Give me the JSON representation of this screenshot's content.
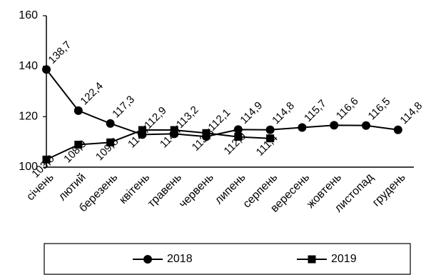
{
  "chart_data": {
    "type": "line",
    "categories": [
      "січень",
      "лютий",
      "березень",
      "квітень",
      "травень",
      "червень",
      "липень",
      "серпень",
      "вересень",
      "жовтень",
      "листопад",
      "грудень"
    ],
    "series": [
      {
        "name": "2018",
        "color": "#000000",
        "marker": "circle",
        "values": [
          138.7,
          122.4,
          117.3,
          112.9,
          113.2,
          112.1,
          114.9,
          114.8,
          115.7,
          116.6,
          116.5,
          114.8
        ],
        "value_labels": [
          "138,7",
          "122,4",
          "117,3",
          "112,9",
          "113,2",
          "112,1",
          "114,9",
          "114,8",
          "115,7",
          "116,6",
          "116,5",
          "114,8"
        ]
      },
      {
        "name": "2019",
        "color": "#000000",
        "marker": "square",
        "values": [
          103.0,
          108.9,
          109.8,
          114.7,
          114.7,
          113.5,
          112.0,
          111.4,
          null,
          null,
          null,
          null
        ],
        "value_labels": [
          "103,0",
          "108,9",
          "109,8",
          "114,7",
          "114,7",
          "113,5",
          "112,0",
          "111,4",
          null,
          null,
          null,
          null
        ]
      }
    ],
    "ylim": [
      100,
      160
    ],
    "yticks": [
      100,
      120,
      140,
      160
    ],
    "grid": false,
    "legend": "bottom"
  }
}
